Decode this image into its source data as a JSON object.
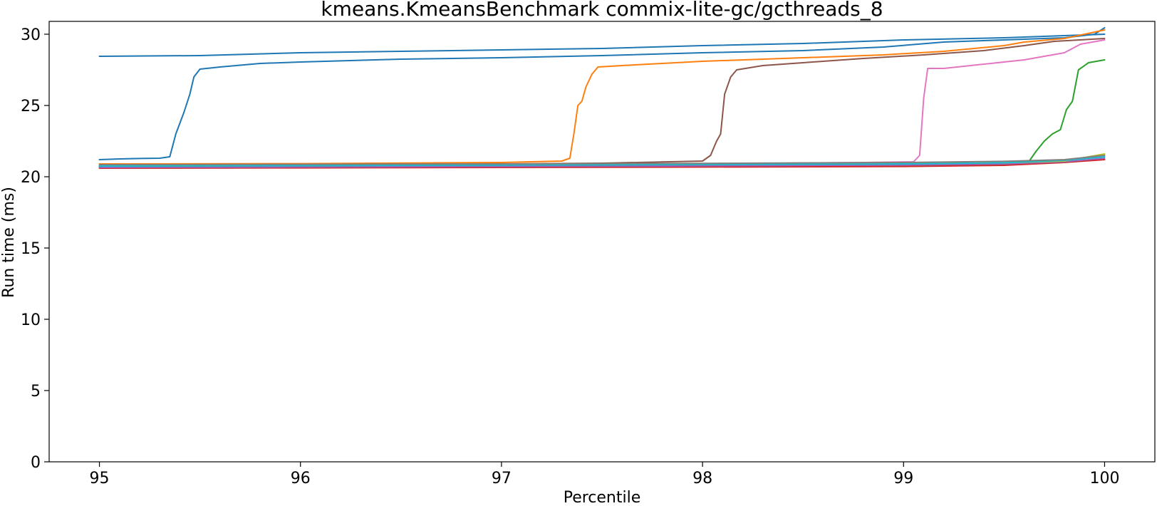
{
  "chart_data": {
    "type": "line",
    "title": "kmeans.KmeansBenchmark commix-lite-gc/gcthreads_8",
    "xlabel": "Percentile",
    "ylabel": "Run time (ms)",
    "xlim": [
      94.75,
      100.25
    ],
    "ylim": [
      0,
      30.9
    ],
    "x_ticks": [
      95,
      96,
      97,
      98,
      99,
      100
    ],
    "y_ticks": [
      0,
      5,
      10,
      15,
      20,
      25,
      30
    ],
    "grid": false,
    "legend": "none",
    "series": [
      {
        "color": "#1f77b4",
        "points": [
          [
            95,
            28.45
          ],
          [
            95.5,
            28.5
          ],
          [
            96,
            28.7
          ],
          [
            96.5,
            28.8
          ],
          [
            97,
            28.9
          ],
          [
            97.5,
            29.0
          ],
          [
            98,
            29.2
          ],
          [
            98.5,
            29.35
          ],
          [
            99,
            29.6
          ],
          [
            99.5,
            29.75
          ],
          [
            100,
            30.0
          ]
        ]
      },
      {
        "color": "#1f77b4",
        "points": [
          [
            95,
            21.2
          ],
          [
            95.1,
            21.25
          ],
          [
            95.2,
            21.28
          ],
          [
            95.3,
            21.3
          ],
          [
            95.35,
            21.4
          ],
          [
            95.38,
            23.0
          ],
          [
            95.42,
            24.5
          ],
          [
            95.45,
            25.8
          ],
          [
            95.47,
            27.0
          ],
          [
            95.5,
            27.55
          ],
          [
            95.6,
            27.7
          ],
          [
            95.8,
            27.95
          ],
          [
            96,
            28.05
          ],
          [
            96.5,
            28.25
          ],
          [
            97,
            28.35
          ],
          [
            97.5,
            28.5
          ],
          [
            98,
            28.7
          ],
          [
            98.5,
            28.85
          ],
          [
            98.9,
            29.1
          ],
          [
            99.2,
            29.45
          ],
          [
            99.5,
            29.6
          ],
          [
            99.8,
            29.75
          ],
          [
            99.95,
            30.0
          ],
          [
            100,
            30.45
          ]
        ]
      },
      {
        "color": "#ff7f0e",
        "points": [
          [
            95,
            20.9
          ],
          [
            96,
            20.92
          ],
          [
            97,
            21.0
          ],
          [
            97.3,
            21.1
          ],
          [
            97.34,
            21.3
          ],
          [
            97.36,
            23.0
          ],
          [
            97.38,
            25.0
          ],
          [
            97.4,
            25.3
          ],
          [
            97.42,
            26.3
          ],
          [
            97.45,
            27.2
          ],
          [
            97.48,
            27.7
          ],
          [
            97.6,
            27.8
          ],
          [
            97.8,
            27.95
          ],
          [
            98,
            28.1
          ],
          [
            98.5,
            28.35
          ],
          [
            98.9,
            28.55
          ],
          [
            99.2,
            28.8
          ],
          [
            99.5,
            29.2
          ],
          [
            99.6,
            29.45
          ],
          [
            99.8,
            29.7
          ],
          [
            99.9,
            30.0
          ],
          [
            100,
            30.3
          ]
        ]
      },
      {
        "color": "#8c564b",
        "points": [
          [
            95,
            20.75
          ],
          [
            96,
            20.8
          ],
          [
            97,
            20.9
          ],
          [
            97.5,
            20.95
          ],
          [
            98,
            21.1
          ],
          [
            98.04,
            21.5
          ],
          [
            98.07,
            22.5
          ],
          [
            98.09,
            23.0
          ],
          [
            98.11,
            25.8
          ],
          [
            98.14,
            27.0
          ],
          [
            98.17,
            27.5
          ],
          [
            98.3,
            27.8
          ],
          [
            98.5,
            28.0
          ],
          [
            98.8,
            28.3
          ],
          [
            99.1,
            28.55
          ],
          [
            99.4,
            28.85
          ],
          [
            99.6,
            29.2
          ],
          [
            99.75,
            29.5
          ],
          [
            100,
            29.7
          ]
        ]
      },
      {
        "color": "#e377c2",
        "points": [
          [
            95,
            20.7
          ],
          [
            96,
            20.75
          ],
          [
            97,
            20.8
          ],
          [
            98,
            20.9
          ],
          [
            98.8,
            21.0
          ],
          [
            99.05,
            21.05
          ],
          [
            99.08,
            21.5
          ],
          [
            99.1,
            25.5
          ],
          [
            99.12,
            27.6
          ],
          [
            99.2,
            27.6
          ],
          [
            99.4,
            27.9
          ],
          [
            99.6,
            28.2
          ],
          [
            99.8,
            28.7
          ],
          [
            99.88,
            29.3
          ],
          [
            100,
            29.6
          ]
        ]
      },
      {
        "color": "#2ca02c",
        "points": [
          [
            95,
            20.7
          ],
          [
            96,
            20.72
          ],
          [
            97,
            20.75
          ],
          [
            98,
            20.78
          ],
          [
            99,
            20.8
          ],
          [
            99.5,
            20.85
          ],
          [
            99.62,
            21.0
          ],
          [
            99.66,
            21.8
          ],
          [
            99.7,
            22.5
          ],
          [
            99.74,
            23.0
          ],
          [
            99.78,
            23.3
          ],
          [
            99.81,
            24.7
          ],
          [
            99.84,
            25.3
          ],
          [
            99.87,
            27.5
          ],
          [
            99.92,
            28.0
          ],
          [
            100,
            28.2
          ]
        ]
      },
      {
        "color": "#d62728",
        "points": [
          [
            95,
            20.6
          ],
          [
            96,
            20.62
          ],
          [
            97,
            20.65
          ],
          [
            98,
            20.68
          ],
          [
            99,
            20.72
          ],
          [
            99.5,
            20.8
          ],
          [
            99.8,
            21.0
          ],
          [
            100,
            21.2
          ]
        ]
      },
      {
        "color": "#9467bd",
        "points": [
          [
            95,
            20.65
          ],
          [
            96,
            20.68
          ],
          [
            97,
            20.72
          ],
          [
            98,
            20.76
          ],
          [
            99,
            20.82
          ],
          [
            99.5,
            20.9
          ],
          [
            99.8,
            21.05
          ],
          [
            100,
            21.3
          ]
        ]
      },
      {
        "color": "#bcbd22",
        "points": [
          [
            95,
            20.8
          ],
          [
            96,
            20.82
          ],
          [
            97,
            20.85
          ],
          [
            98,
            20.88
          ],
          [
            99,
            20.92
          ],
          [
            99.5,
            20.98
          ],
          [
            99.8,
            21.1
          ],
          [
            100,
            21.6
          ]
        ]
      },
      {
        "color": "#17becf",
        "points": [
          [
            95,
            20.75
          ],
          [
            96,
            20.78
          ],
          [
            97,
            20.82
          ],
          [
            98,
            20.86
          ],
          [
            99,
            20.9
          ],
          [
            99.5,
            20.98
          ],
          [
            99.8,
            21.15
          ],
          [
            100,
            21.4
          ]
        ]
      },
      {
        "color": "#7f7f7f",
        "points": [
          [
            95,
            20.85
          ],
          [
            96,
            20.87
          ],
          [
            97,
            20.9
          ],
          [
            98,
            20.94
          ],
          [
            99,
            21.0
          ],
          [
            99.5,
            21.08
          ],
          [
            99.8,
            21.2
          ],
          [
            100,
            21.5
          ]
        ]
      }
    ]
  }
}
